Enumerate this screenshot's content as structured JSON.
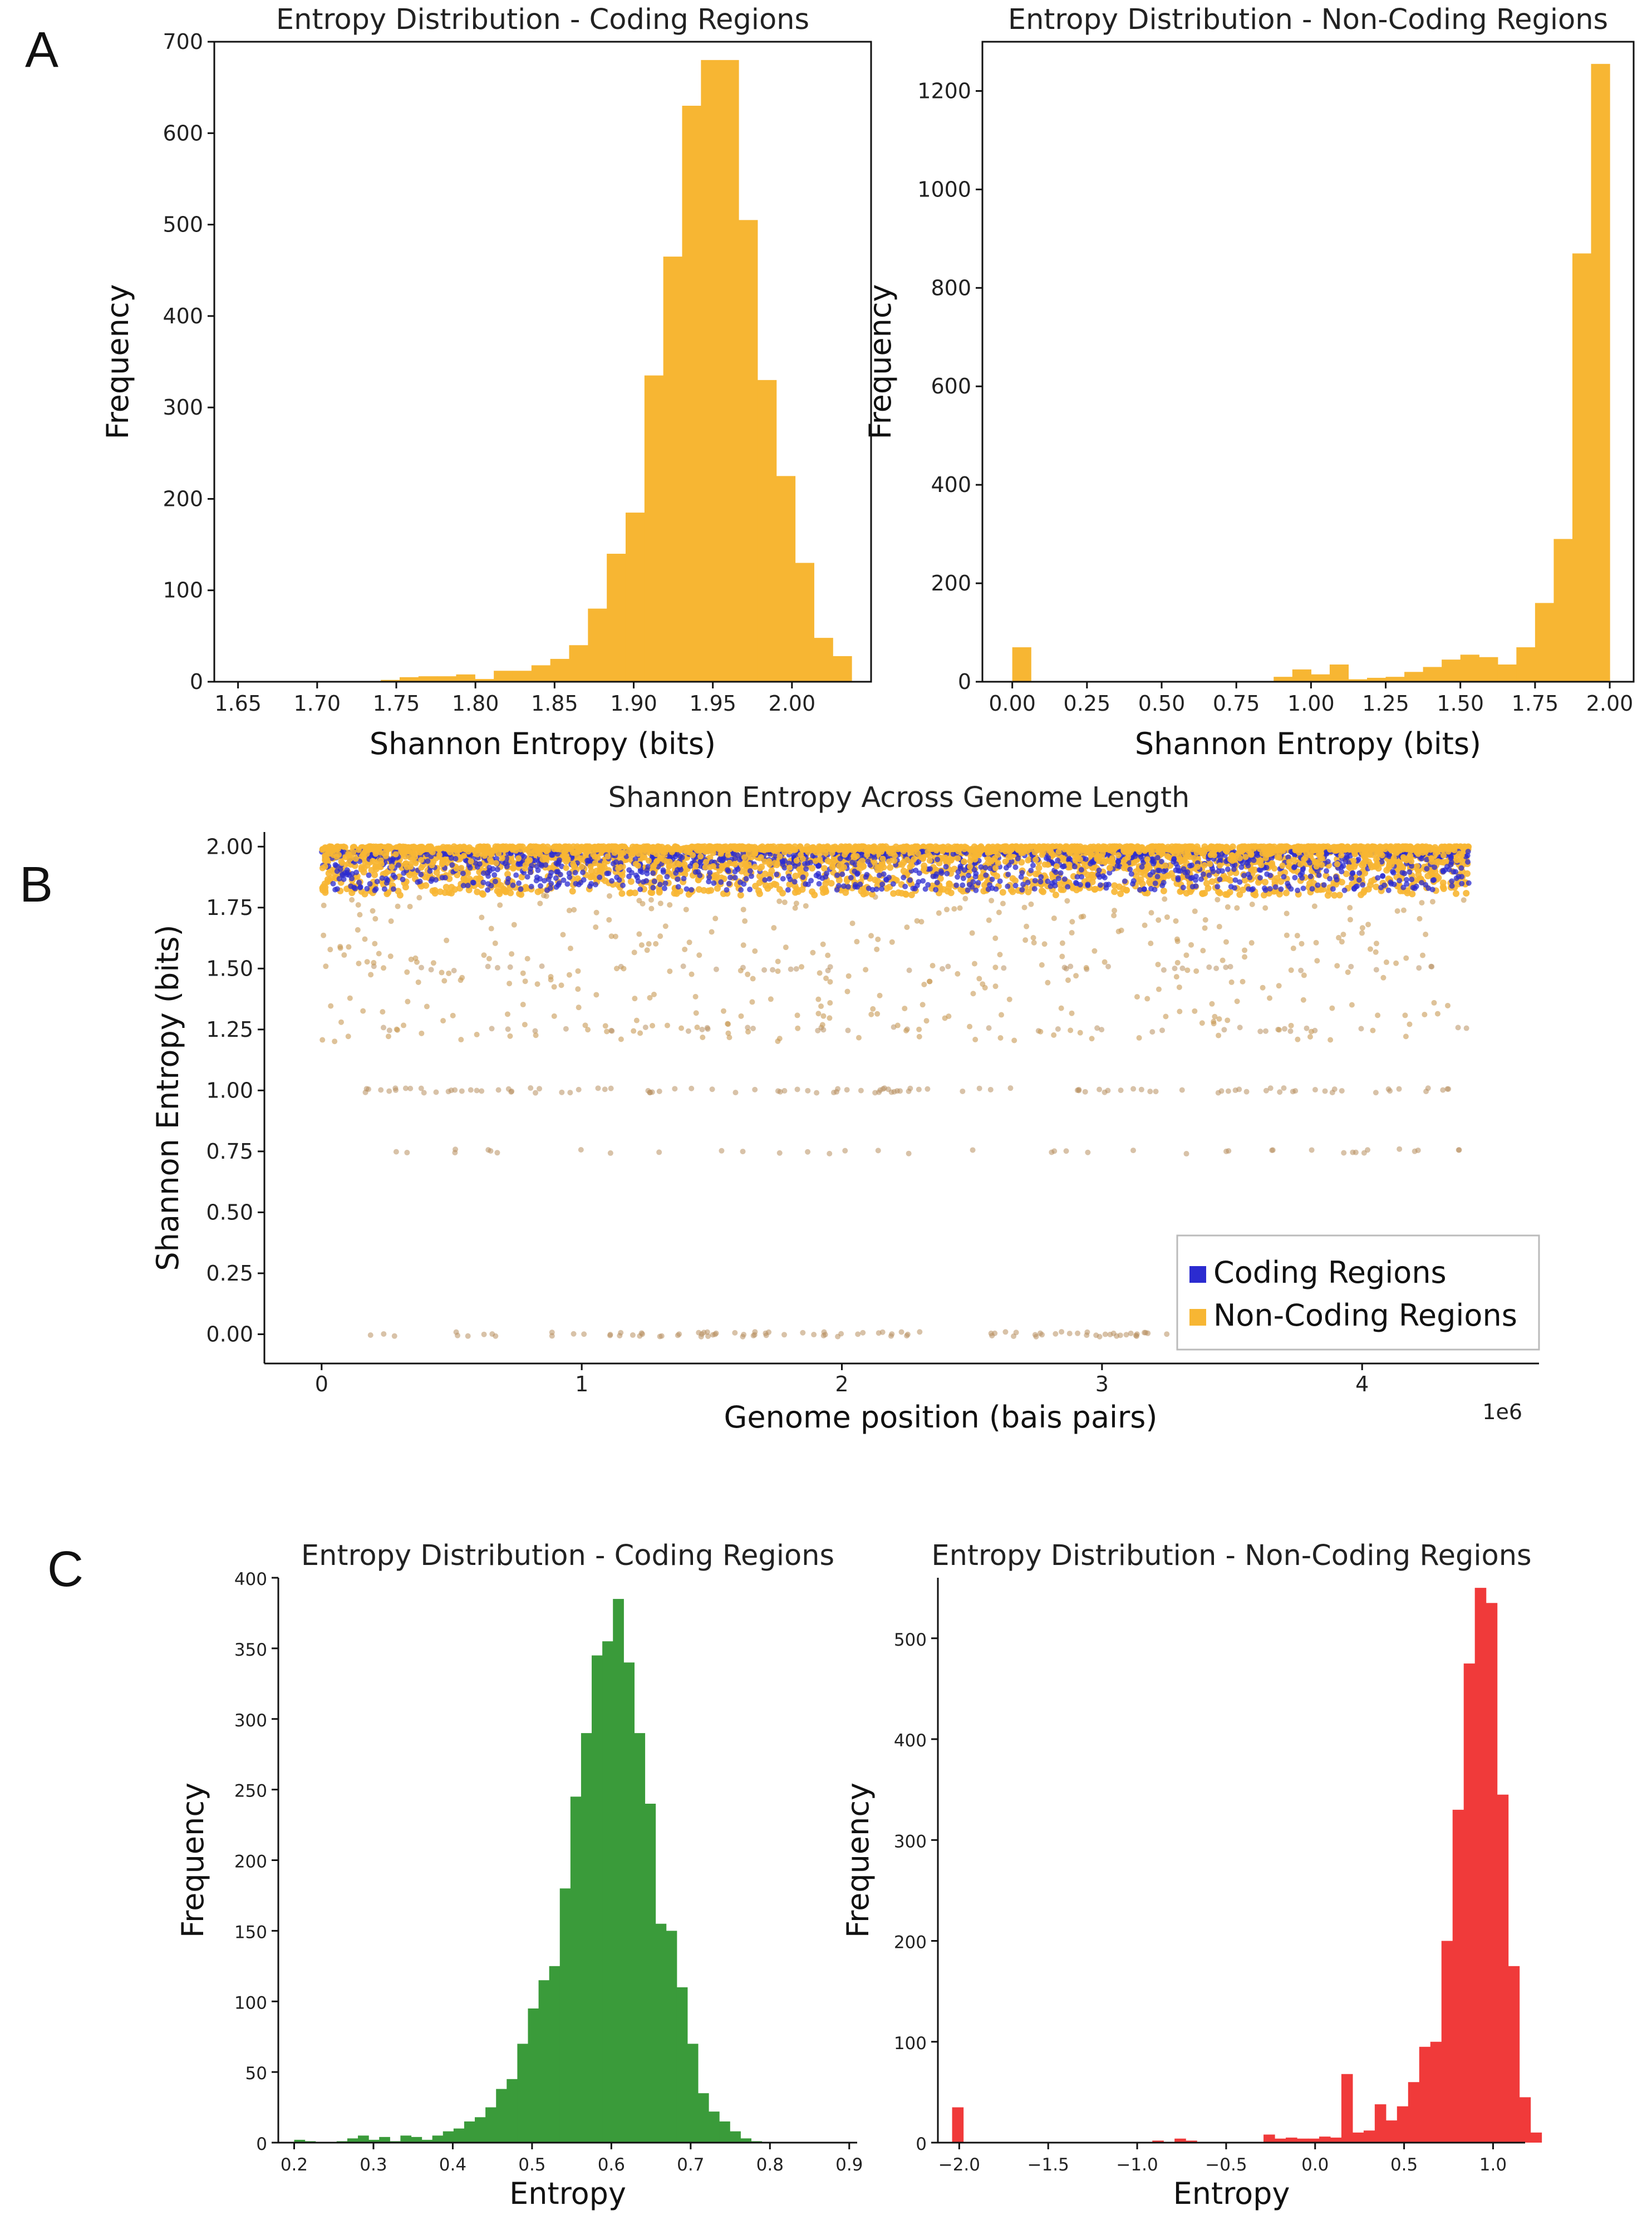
{
  "panel_labels": [
    "A",
    "B",
    "C"
  ],
  "colors": {
    "orange": "#F7B633",
    "blue": "#2B2BD0",
    "green": "#3A9B3A",
    "red": "#F03A3A"
  },
  "chart_data": [
    {
      "id": "a1",
      "type": "bar",
      "title": "Entropy Distribution - Coding Regions",
      "xlabel": "Shannon Entropy (bits)",
      "ylabel": "Frequency",
      "xlim": [
        1.635,
        2.05
      ],
      "ylim": [
        0,
        700
      ],
      "xticks": [
        1.65,
        1.7,
        1.75,
        1.8,
        1.85,
        1.9,
        1.95,
        2.0
      ],
      "xtick_labels": [
        "1.65",
        "1.70",
        "1.75",
        "1.80",
        "1.85",
        "1.90",
        "1.95",
        "2.00"
      ],
      "yticks": [
        0,
        100,
        200,
        300,
        400,
        500,
        600,
        700
      ],
      "bin_start": 1.645,
      "bin_width": 0.0119,
      "values": [
        0,
        0,
        0,
        0,
        0,
        0,
        0,
        0,
        2,
        5,
        6,
        6,
        8,
        3,
        12,
        12,
        18,
        25,
        40,
        80,
        140,
        185,
        335,
        465,
        630,
        680,
        680,
        505,
        330,
        225,
        130,
        48,
        28
      ]
    },
    {
      "id": "a2",
      "type": "bar",
      "title": "Entropy Distribution - Non-Coding Regions",
      "xlabel": "Shannon Entropy (bits)",
      "ylabel": "Frequency",
      "xlim": [
        -0.1,
        2.08
      ],
      "ylim": [
        0,
        1300
      ],
      "xticks": [
        0,
        0.25,
        0.5,
        0.75,
        1.0,
        1.25,
        1.5,
        1.75,
        2.0
      ],
      "xtick_labels": [
        "0.00",
        "0.25",
        "0.50",
        "0.75",
        "1.00",
        "1.25",
        "1.50",
        "1.75",
        "2.00"
      ],
      "yticks": [
        0,
        200,
        400,
        600,
        800,
        1000,
        1200
      ],
      "bin_start": 0.0,
      "bin_width": 0.0625,
      "values": [
        70,
        0,
        0,
        0,
        0,
        0,
        0,
        0,
        0,
        0,
        0,
        0,
        0,
        0,
        10,
        25,
        15,
        35,
        5,
        8,
        10,
        20,
        30,
        45,
        55,
        50,
        35,
        70,
        160,
        290,
        870,
        1255
      ]
    },
    {
      "id": "b",
      "type": "scatter",
      "title": "Shannon Entropy Across Genome Length",
      "xlabel": "Genome position (bais pairs)",
      "ylabel": "Shannon Entropy (bits)",
      "x_offset_label": "1e6",
      "xlim": [
        -0.22,
        4.68
      ],
      "ylim": [
        -0.12,
        2.06
      ],
      "xticks": [
        0,
        1,
        2,
        3,
        4
      ],
      "xtick_labels": [
        "0",
        "1",
        "2",
        "3",
        "4"
      ],
      "yticks": [
        0,
        0.25,
        0.5,
        0.75,
        1.0,
        1.25,
        1.5,
        1.75,
        2.0
      ],
      "ytick_labels": [
        "0.00",
        "0.25",
        "0.50",
        "0.75",
        "1.00",
        "1.25",
        "1.50",
        "1.75",
        "2.00"
      ],
      "genome_length_mbp": 4.41,
      "series": [
        {
          "name": "Coding Regions",
          "color": "#2B2BD0",
          "band": [
            1.82,
            2.0
          ]
        },
        {
          "name": "Non-Coding Regions",
          "color": "#F7B633",
          "band": [
            1.78,
            2.0
          ],
          "levels": [
            0,
            0.75,
            1.0,
            1.25,
            1.5
          ]
        }
      ],
      "legend": [
        "Coding Regions",
        "Non-Coding Regions"
      ],
      "legend_loc": "lower-right"
    },
    {
      "id": "c1",
      "type": "bar",
      "title": "Entropy Distribution - Coding Regions",
      "xlabel": "Entropy",
      "ylabel": "Frequency",
      "xlim": [
        0.18,
        0.91
      ],
      "ylim": [
        0,
        400
      ],
      "xticks": [
        0.2,
        0.3,
        0.4,
        0.5,
        0.6,
        0.7,
        0.8,
        0.9
      ],
      "xtick_labels": [
        "0.2",
        "0.3",
        "0.4",
        "0.5",
        "0.6",
        "0.7",
        "0.8",
        "0.9"
      ],
      "yticks": [
        0,
        50,
        100,
        150,
        200,
        250,
        300,
        350,
        400
      ],
      "bin_start": 0.2,
      "bin_width": 0.0134,
      "values": [
        2,
        1,
        0,
        0,
        1,
        3,
        5,
        2,
        4,
        1,
        5,
        4,
        2,
        5,
        8,
        10,
        15,
        18,
        25,
        38,
        45,
        70,
        95,
        115,
        125,
        180,
        245,
        290,
        345,
        355,
        385,
        340,
        290,
        240,
        155,
        150,
        110,
        70,
        35,
        22,
        15,
        8,
        3,
        1,
        0,
        0,
        0,
        0,
        0,
        0
      ]
    },
    {
      "id": "c2",
      "type": "bar",
      "title": "Entropy Distribution - Non-Coding Regions",
      "xlabel": "Entropy",
      "ylabel": "Frequency",
      "xlim": [
        -2.12,
        1.18
      ],
      "ylim": [
        0,
        560
      ],
      "xticks": [
        -2.0,
        -1.5,
        -1.0,
        -0.5,
        0.0,
        0.5,
        1.0
      ],
      "xtick_labels": [
        "−2.0",
        "−1.5",
        "−1.0",
        "−0.5",
        "0.0",
        "0.5",
        "1.0"
      ],
      "yticks": [
        0,
        100,
        200,
        300,
        400,
        500
      ],
      "bin_start": -2.04,
      "bin_width": 0.0625,
      "values": [
        35,
        0,
        0,
        0,
        0,
        0,
        0,
        0,
        0,
        0,
        0,
        0,
        0,
        0,
        0,
        0,
        0,
        0,
        2,
        0,
        4,
        2,
        0,
        0,
        0,
        0,
        0,
        0,
        8,
        4,
        5,
        4,
        4,
        6,
        5,
        68,
        10,
        12,
        38,
        22,
        36,
        60,
        95,
        100,
        200,
        330,
        475,
        550,
        535,
        345,
        175,
        45,
        10
      ]
    }
  ]
}
